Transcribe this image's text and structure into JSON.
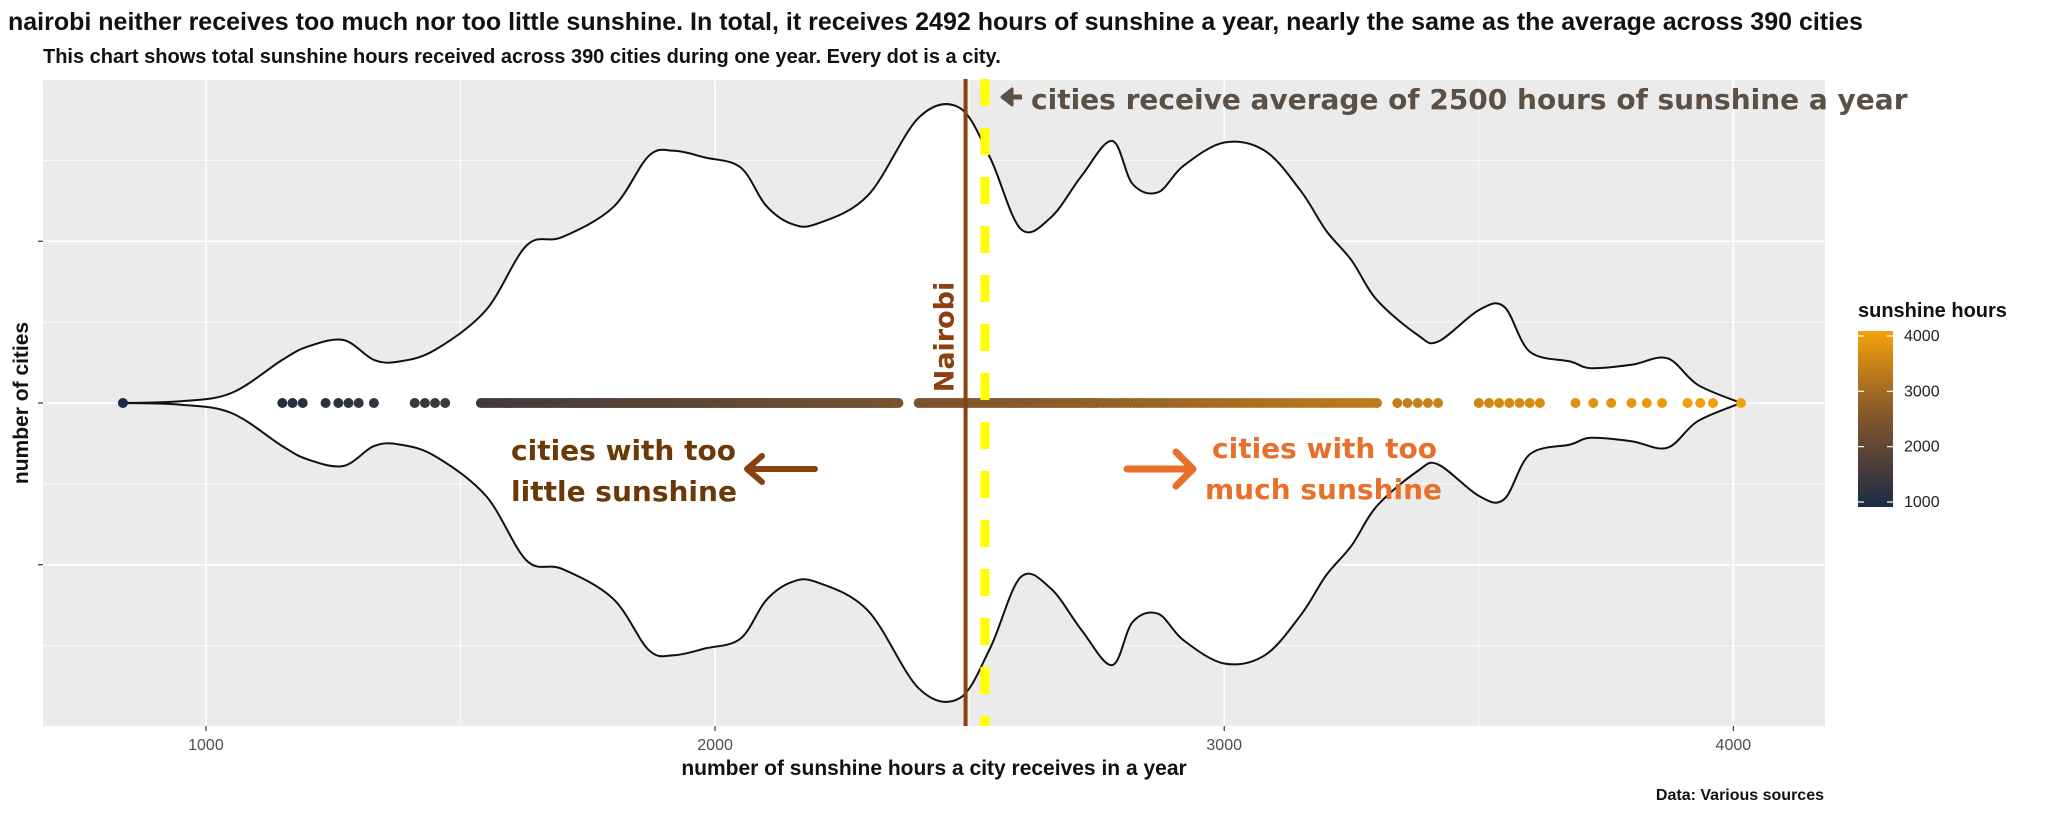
{
  "title": "nairobi neither receives too much nor too little sunshine. In total, it receives 2492 hours of sunshine a year, nearly the same as the average across 390 cities",
  "subtitle": "This chart shows total sunshine hours received across 390 cities during one year. Every dot is a city.",
  "caption": "Data: Various sources",
  "chart_data": {
    "type": "scatter",
    "chart_style": "violin with jittered strip (beeswarm-like dot line)",
    "xlabel": "number of sunshine hours a city receives in a year",
    "ylabel": "number of cities",
    "x_ticks": [
      1000,
      2000,
      3000,
      4000
    ],
    "xlim": [
      680,
      4180
    ],
    "grid": true,
    "legend": {
      "title": "sunshine hours",
      "placement": "right",
      "ticks": [
        1000,
        2000,
        3000,
        4000
      ],
      "color_low": "#1c2a45",
      "color_high": "#f5a20a"
    },
    "min_city_hours": 837,
    "max_city_hours": 4015,
    "nairobi_hours": 2492,
    "average_hours": 2530,
    "nairobi_label": "Nairobi",
    "annotations": {
      "average": "cities receive average of 2500  hours of sunshine a year",
      "too_little_line1": "cities with too",
      "too_little_line2": "little sunshine",
      "too_much_line1": "cities with too",
      "too_much_line2": "much sunshine"
    },
    "violin_profile": {
      "x": [
        837,
        950,
        1050,
        1150,
        1200,
        1270,
        1330,
        1380,
        1450,
        1550,
        1630,
        1700,
        1800,
        1870,
        1920,
        1980,
        2050,
        2100,
        2150,
        2200,
        2300,
        2400,
        2480,
        2540,
        2600,
        2660,
        2720,
        2780,
        2820,
        2870,
        2920,
        3000,
        3080,
        3150,
        3200,
        3250,
        3300,
        3380,
        3420,
        3500,
        3550,
        3600,
        3680,
        3720,
        3800,
        3870,
        3930,
        4015
      ],
      "density": [
        0,
        0.01,
        0.06,
        0.26,
        0.34,
        0.38,
        0.26,
        0.25,
        0.32,
        0.56,
        0.95,
        1.0,
        1.18,
        1.49,
        1.52,
        1.48,
        1.42,
        1.19,
        1.08,
        1.08,
        1.25,
        1.72,
        1.78,
        1.48,
        1.05,
        1.12,
        1.37,
        1.58,
        1.32,
        1.27,
        1.43,
        1.57,
        1.52,
        1.28,
        1.04,
        0.86,
        0.62,
        0.41,
        0.37,
        0.56,
        0.58,
        0.31,
        0.25,
        0.21,
        0.23,
        0.27,
        0.11,
        0
      ],
      "density_max": 1.95
    },
    "dot_clusters": [
      {
        "from": 1150,
        "to": 1190,
        "n": 3
      },
      {
        "from": 1235,
        "to": 1240,
        "n": 1
      },
      {
        "from": 1260,
        "to": 1300,
        "n": 3
      },
      {
        "from": 1330,
        "to": 1335,
        "n": 1
      },
      {
        "from": 1410,
        "to": 1470,
        "n": 4
      },
      {
        "from": 1540,
        "to": 1720,
        "n": 40
      },
      {
        "from": 1720,
        "to": 2360,
        "n": 160
      },
      {
        "from": 2400,
        "to": 2750,
        "n": 70
      },
      {
        "from": 2750,
        "to": 3300,
        "n": 85
      },
      {
        "from": 3340,
        "to": 3420,
        "n": 5
      },
      {
        "from": 3500,
        "to": 3620,
        "n": 7
      },
      {
        "from": 3690,
        "to": 3760,
        "n": 3
      },
      {
        "from": 3800,
        "to": 3860,
        "n": 3
      },
      {
        "from": 3910,
        "to": 3960,
        "n": 3
      }
    ]
  }
}
